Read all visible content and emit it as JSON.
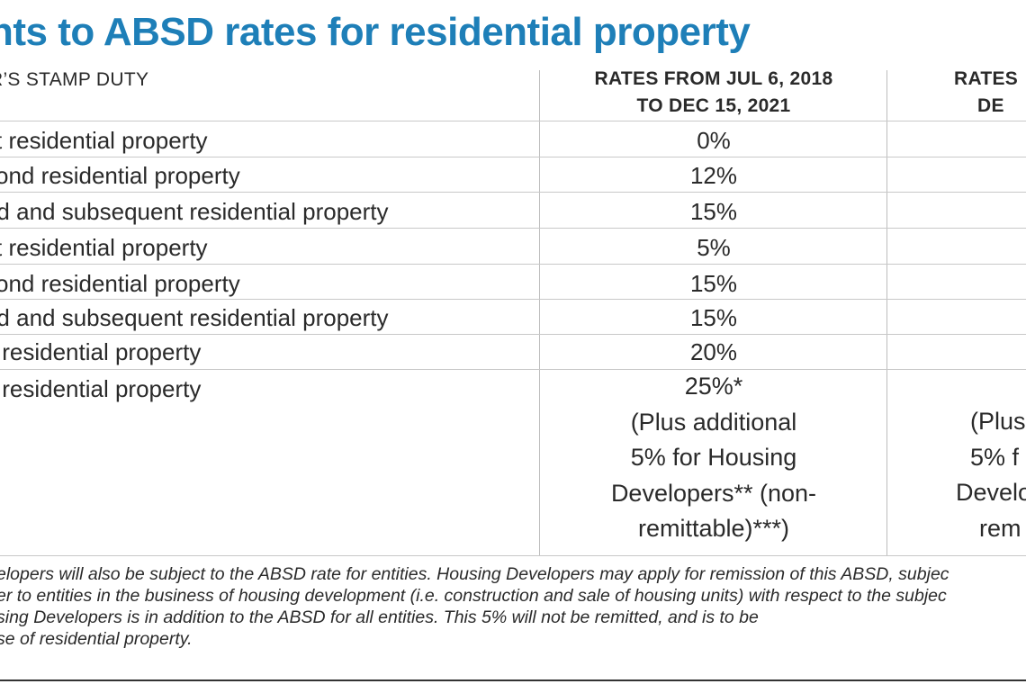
{
  "title": "nts to ABSD rates for residential property",
  "header": {
    "left_label": "R’S STAMP DUTY",
    "col1_line1": "RATES FROM JUL 6, 2018",
    "col1_line2": "TO DEC 15, 2021",
    "col2_line1": "RATES",
    "col2_line2": "DE"
  },
  "rows": [
    {
      "label": "st residential property",
      "rate": "0%"
    },
    {
      "label": "cond residential property",
      "rate": "12%"
    },
    {
      "label": "ird and subsequent residential property",
      "rate": "15%"
    },
    {
      "label": "st residential property",
      "rate": "5%"
    },
    {
      "label": "cond residential property",
      "rate": "15%"
    },
    {
      "label": "ird and subsequent residential property",
      "rate": "15%"
    },
    {
      "label": "y residential property",
      "rate": "20%"
    }
  ],
  "last_row": {
    "label": "y residential property",
    "col1_lines": [
      "25%*",
      "(Plus additional",
      "5% for Housing",
      "Developers** (non-",
      "remittable)***)"
    ],
    "col2_lines": [
      "(Plus",
      "5% f",
      "Develo",
      "rem"
    ]
  },
  "notes": [
    "elopers will also be subject to the ABSD rate for entities. Housing Developers may apply for remission of this ABSD, subjec",
    "er to entities in the business of housing development (i.e. construction and sale of housing units) with respect to the subjec",
    "sing Developers is in addition to the ABSD for all entities. This 5% will not be remitted, and is to be",
    "se of residential property."
  ]
}
